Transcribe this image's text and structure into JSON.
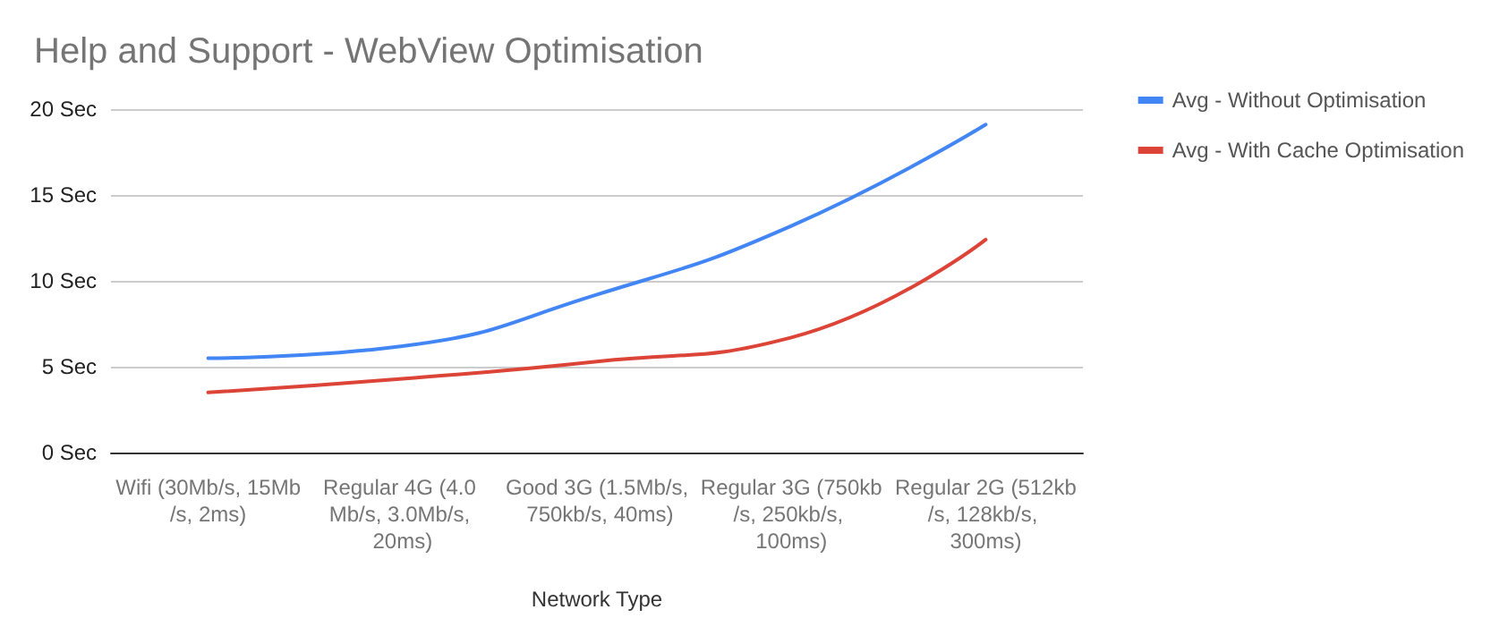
{
  "chart_data": {
    "type": "line",
    "title": "Help and Support - WebView Optimisation",
    "xlabel": "Network Type",
    "categories": [
      "Wifi (30Mb/s, 15Mb/s, 2ms)",
      "Regular 4G (4.0 Mb/s, 3.0Mb/s, 20ms)",
      "Good 3G (1.5Mb/s, 750kb/s, 40ms)",
      "Regular 3G (750kb/s, 250kb/s, 100ms)",
      "Regular 2G (512kb/s, 128kb/s, 300ms)"
    ],
    "series": [
      {
        "name": "Avg - Without Optimisation",
        "color": "#4285f4",
        "values": [
          5.5,
          6.2,
          9.2,
          13.2,
          19.1
        ]
      },
      {
        "name": "Avg - With Cache Optimisation",
        "color": "#db4437",
        "values": [
          3.5,
          4.3,
          5.3,
          6.7,
          12.4
        ]
      }
    ],
    "ylim": [
      0,
      20
    ],
    "yticks": [
      {
        "value": 0,
        "label": "0 Sec"
      },
      {
        "value": 5,
        "label": "5 Sec"
      },
      {
        "value": 10,
        "label": "10 Sec"
      },
      {
        "value": 15,
        "label": "15 Sec"
      },
      {
        "value": 20,
        "label": "20 Sec"
      }
    ],
    "grid": "y",
    "legend": "right",
    "marker": "none",
    "line_style": "solid"
  }
}
